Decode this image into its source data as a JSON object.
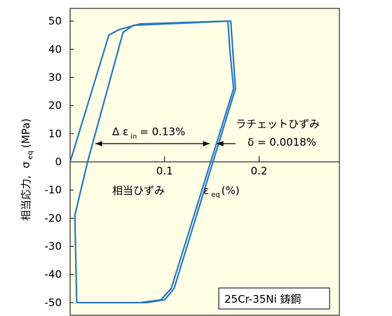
{
  "chart_data": {
    "type": "line",
    "xlim": [
      0,
      0.285
    ],
    "ylim": [
      -54.5,
      54.5
    ],
    "xticks": [
      0.1,
      0.2
    ],
    "yticks": [
      -50,
      -40,
      -30,
      -20,
      -10,
      0,
      10,
      20,
      30,
      40,
      50
    ],
    "background": "#ffffe6",
    "series": [
      {
        "color": "#2e7bc4",
        "x": [
          0,
          0.041,
          0.052,
          0.074,
          0.167,
          0.169,
          0.173,
          0.107,
          0.096,
          0.074,
          0.007,
          0.005,
          0.0185,
          0.056,
          0.067,
          0.17,
          0.175,
          0.11,
          0.1,
          0.081,
          0.007
        ],
        "y": [
          0,
          45,
          47,
          49,
          50,
          40,
          26,
          -45,
          -49,
          -50,
          -50,
          -19,
          0,
          46,
          48.5,
          50,
          26,
          -45,
          -49,
          -50,
          -50
        ]
      }
    ],
    "xlabel": [
      "相当ひずみ",
      "ε",
      "eq",
      "(%)"
    ],
    "ylabel": [
      "相当応力,",
      "σ",
      "eq",
      "(MPa)"
    ],
    "annotations": {
      "inelastic": [
        "Δ ε",
        "in",
        "= 0.13%"
      ],
      "ratchet_title": "ラチェットひずみ",
      "ratchet_value": "δ = 0.0018%",
      "legend_box": "25Cr-35Ni 鋳鋼"
    }
  }
}
